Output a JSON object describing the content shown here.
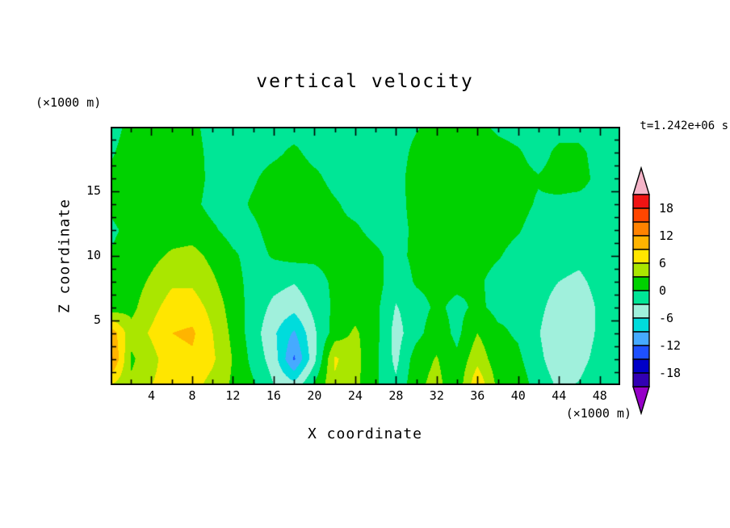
{
  "title": "vertical velocity",
  "annotations": {
    "time_label": "t=1.242e+06 s",
    "y_units_label": "(×1000 m)",
    "x_units_label": "(×1000 m)"
  },
  "axes": {
    "x": {
      "label": "X coordinate",
      "min": 0,
      "max": 50,
      "major_ticks": [
        4,
        8,
        12,
        16,
        20,
        24,
        28,
        32,
        36,
        40,
        44,
        48
      ],
      "minor_step": 2
    },
    "z": {
      "label": "Z coordinate",
      "min": 0,
      "max": 20,
      "major_ticks": [
        5,
        10,
        15
      ],
      "minor_step": 1
    }
  },
  "colorbar": {
    "levels": [
      -21,
      -18,
      -15,
      -12,
      -9,
      -6,
      -3,
      0,
      3,
      6,
      9,
      12,
      15,
      18,
      21
    ],
    "band_colors": [
      "#3200b4",
      "#0000c8",
      "#1e50ff",
      "#46aaff",
      "#00dcdc",
      "#a0f0dc",
      "#00e696",
      "#00d200",
      "#aae600",
      "#ffe600",
      "#ffb400",
      "#ff8200",
      "#ff4600",
      "#f01414"
    ],
    "arrow_top_color": "#f5b4c8",
    "arrow_bottom_color": "#9600c8",
    "labels": [
      "18",
      "12",
      "6",
      "0",
      "-6",
      "-12",
      "-18"
    ]
  },
  "chart_data": {
    "type": "heatmap",
    "title": "vertical velocity",
    "xlabel": "X coordinate",
    "ylabel": "Z coordinate",
    "units_note": "axes in x1000 m, shading interval 3, arrows beyond ±21",
    "time": "t=1.242e+06 s",
    "x_range": [
      0,
      50
    ],
    "z_range": [
      0,
      20
    ],
    "contour_interval": 3,
    "grid_x": [
      0,
      2,
      4,
      6,
      8,
      10,
      12,
      14,
      16,
      18,
      20,
      22,
      24,
      26,
      28,
      30,
      32,
      34,
      36,
      38,
      40,
      42,
      44,
      46,
      48,
      50
    ],
    "grid_z": [
      20,
      18,
      16,
      14,
      12,
      10,
      8,
      6,
      4,
      2,
      0
    ],
    "values": [
      [
        -1,
        0.8,
        1.6,
        1.6,
        0.6,
        -1,
        -1,
        -1,
        -1,
        -1,
        -1,
        -1,
        -1,
        -1,
        -1,
        -0.2,
        0.8,
        1.2,
        0.8,
        -0.5,
        -1,
        -1,
        -1,
        -1,
        -1,
        -1
      ],
      [
        -0.3,
        1.2,
        2,
        2,
        1,
        -0.8,
        -1,
        -1,
        -0.5,
        0.5,
        -0.8,
        -1,
        -1,
        -1,
        -1,
        0.6,
        1.6,
        1.8,
        1.6,
        1,
        0.3,
        -1,
        0.6,
        0.6,
        -1,
        -1
      ],
      [
        0.6,
        1.6,
        2.2,
        2,
        1,
        -0.6,
        -1,
        -0.3,
        1,
        1.4,
        0.6,
        -0.8,
        -1,
        -1,
        -0.8,
        1,
        2,
        2.2,
        2,
        1.4,
        0.8,
        0.2,
        1,
        1,
        -0.8,
        -1
      ],
      [
        0.4,
        1.2,
        1.8,
        1.6,
        0.6,
        -0.8,
        -1,
        0.4,
        1.4,
        2,
        1.4,
        0.3,
        -0.8,
        -1,
        -1,
        1,
        2,
        2.4,
        2,
        1.4,
        0.8,
        -0.3,
        -0.6,
        -1,
        -1,
        -1
      ],
      [
        -0.4,
        0.6,
        1.2,
        1.6,
        1.6,
        0.4,
        -1,
        -0.5,
        1,
        1.6,
        1,
        0.6,
        0.4,
        -0.8,
        -1,
        0.6,
        1.6,
        2,
        1.4,
        0.8,
        0.2,
        -1,
        -1.2,
        -1.4,
        -1,
        -1
      ],
      [
        0.2,
        1,
        2.2,
        3.5,
        4,
        2.2,
        0.4,
        -1,
        0.3,
        1,
        0.6,
        1,
        1.4,
        0.6,
        -1,
        0.8,
        1.4,
        1.4,
        0.8,
        0.2,
        -0.8,
        -1.2,
        -2,
        -2.4,
        -1.6,
        -1
      ],
      [
        0.6,
        1.6,
        3.5,
        5.5,
        5.5,
        3.5,
        1,
        -1,
        -2,
        -2.8,
        -1.2,
        0.6,
        1.6,
        1.4,
        -2,
        0.4,
        1,
        0.8,
        0.4,
        -0.8,
        -1,
        -1.6,
        -3,
        -3.5,
        -2.2,
        -1
      ],
      [
        1.2,
        2.2,
        5,
        7.5,
        7.5,
        5,
        1.6,
        -1.2,
        -3.8,
        -5,
        -2.2,
        0.6,
        1.8,
        0.8,
        -3.2,
        -1.4,
        0.6,
        -0.8,
        0.6,
        -0.8,
        -0.6,
        -2.2,
        -4.5,
        -4.5,
        -2.6,
        -1
      ],
      [
        11,
        4,
        6.5,
        9,
        9.5,
        6,
        2.2,
        -1.6,
        -5.5,
        -9.5,
        -3.5,
        1.4,
        3.5,
        1,
        -4.2,
        -1,
        1.8,
        -0.8,
        3,
        0.6,
        -0.4,
        -2.8,
        -5.5,
        -5,
        -2.4,
        -1
      ],
      [
        13,
        2.5,
        5,
        8,
        8.5,
        6.5,
        2.8,
        -1,
        -4.5,
        -12.5,
        -3.8,
        6.5,
        4,
        0.6,
        -3.8,
        1.6,
        3.2,
        0.6,
        5,
        1.2,
        0.6,
        -2.2,
        -5,
        -4.2,
        -1.8,
        -0.6
      ],
      [
        6,
        3.5,
        6,
        7.5,
        7,
        5,
        2.5,
        0.3,
        -3,
        -5,
        0.5,
        5.5,
        3.8,
        0.4,
        -2.5,
        2.2,
        4,
        0.8,
        8.5,
        2.2,
        1.6,
        -1.2,
        -3.5,
        -2.8,
        -0.6,
        -0.4
      ]
    ]
  }
}
